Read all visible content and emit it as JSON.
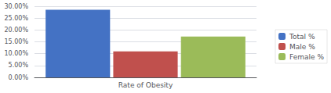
{
  "chart_data": {
    "type": "bar",
    "categories": [
      "Rate of Obesity"
    ],
    "series": [
      {
        "name": "Total %",
        "color": "#4472C4",
        "values": [
          0.285
        ]
      },
      {
        "name": "Male %",
        "color": "#C0504D",
        "values": [
          0.11
        ]
      },
      {
        "name": "Female %",
        "color": "#9BBB59",
        "values": [
          0.172
        ]
      }
    ],
    "ylim": [
      0,
      0.3
    ],
    "yticks": [
      {
        "value": 0.0,
        "label": "0.00%"
      },
      {
        "value": 0.05,
        "label": "5.00%"
      },
      {
        "value": 0.1,
        "label": "10.00%"
      },
      {
        "value": 0.15,
        "label": "15.00%"
      },
      {
        "value": 0.2,
        "label": "20.00%"
      },
      {
        "value": 0.25,
        "label": "25.00%"
      },
      {
        "value": 0.3,
        "label": "30.00%"
      }
    ],
    "grid": true,
    "legend": "right"
  }
}
